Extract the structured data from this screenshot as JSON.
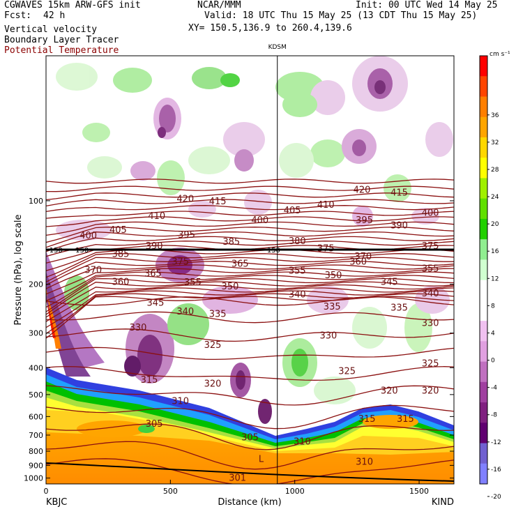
{
  "header": {
    "model": "CGWAVES 15km ARW-GFS init",
    "fcst_label": "Fcst:",
    "fcst_value": "42 h",
    "org": "NCAR/MMM",
    "init": "Init: 00 UTC Wed 14 May 25",
    "valid": "Valid: 18 UTC Thu 15 May 25 (13 CDT Thu 15 May 25)",
    "xy": "XY= 150.5,136.9 to 260.4,139.6",
    "field1": "Vertical velocity",
    "field2": "Boundary Layer Tracer",
    "field3": "Potential Temperature",
    "field3_color": "#8b0000"
  },
  "chart_data": {
    "type": "heatmap",
    "title": "",
    "ylabel": "Pressure (hPa), log scale",
    "xlabel": "Distance (km)",
    "x_ticks": [
      0,
      500,
      1000,
      1500
    ],
    "x_range": [
      0,
      1640
    ],
    "y_ticks": [
      100,
      200,
      300,
      400,
      500,
      600,
      700,
      800,
      900,
      1000
    ],
    "y_range": [
      1050,
      30
    ],
    "y_scale": "log",
    "left_station": "KBJC",
    "right_station": "KIND",
    "marker_station": "KDSM",
    "marker_x": 930,
    "colorbar": {
      "units": "cm s⁻¹",
      "ticks": [
        36,
        32,
        28,
        24,
        20,
        16,
        12,
        8,
        4,
        0,
        -4,
        -8,
        -12,
        -16,
        -20
      ],
      "colors": [
        "#ff0000",
        "#ff4500",
        "#ff7f00",
        "#ffa500",
        "#ffd700",
        "#ffff00",
        "#a0f000",
        "#60e000",
        "#20d000",
        "#90ee90",
        "#d0ffd0",
        "#ffffff",
        "#ffffff",
        "#f0c0f0",
        "#e0a0e0",
        "#c070c0",
        "#a040a0",
        "#802080",
        "#600070",
        "#7060d0",
        "#8080ff"
      ]
    },
    "theta_labels": [
      {
        "v": "420",
        "x": 560,
        "p": 98
      },
      {
        "v": "415",
        "x": 690,
        "p": 100
      },
      {
        "v": "420",
        "x": 1270,
        "p": 91
      },
      {
        "v": "415",
        "x": 1420,
        "p": 93
      },
      {
        "v": "410",
        "x": 445,
        "p": 113
      },
      {
        "v": "405",
        "x": 290,
        "p": 127
      },
      {
        "v": "400",
        "x": 170,
        "p": 133
      },
      {
        "v": "395",
        "x": 565,
        "p": 132
      },
      {
        "v": "400",
        "x": 860,
        "p": 117
      },
      {
        "v": "405",
        "x": 990,
        "p": 108
      },
      {
        "v": "410",
        "x": 1125,
        "p": 103
      },
      {
        "v": "395",
        "x": 1280,
        "p": 117
      },
      {
        "v": "390",
        "x": 1420,
        "p": 122
      },
      {
        "v": "400",
        "x": 1545,
        "p": 110
      },
      {
        "v": "390",
        "x": 435,
        "p": 145
      },
      {
        "v": "385",
        "x": 745,
        "p": 140
      },
      {
        "v": "380",
        "x": 1010,
        "p": 139
      },
      {
        "v": "375",
        "x": 1125,
        "p": 148
      },
      {
        "v": "375",
        "x": 1545,
        "p": 145
      },
      {
        "v": "385",
        "x": 300,
        "p": 155
      },
      {
        "v": "375",
        "x": 540,
        "p": 165
      },
      {
        "v": "365",
        "x": 780,
        "p": 168
      },
      {
        "v": "370",
        "x": 1275,
        "p": 158
      },
      {
        "v": "360",
        "x": 1255,
        "p": 165
      },
      {
        "v": "370",
        "x": 190,
        "p": 177
      },
      {
        "v": "365",
        "x": 430,
        "p": 182
      },
      {
        "v": "360",
        "x": 300,
        "p": 195
      },
      {
        "v": "355",
        "x": 590,
        "p": 196
      },
      {
        "v": "355",
        "x": 1010,
        "p": 178
      },
      {
        "v": "350",
        "x": 1155,
        "p": 185
      },
      {
        "v": "345",
        "x": 1380,
        "p": 195
      },
      {
        "v": "355",
        "x": 1545,
        "p": 175
      },
      {
        "v": "350",
        "x": 740,
        "p": 203
      },
      {
        "v": "340",
        "x": 1010,
        "p": 217
      },
      {
        "v": "340",
        "x": 1545,
        "p": 215
      },
      {
        "v": "345",
        "x": 440,
        "p": 232
      },
      {
        "v": "340",
        "x": 560,
        "p": 250
      },
      {
        "v": "335",
        "x": 690,
        "p": 255
      },
      {
        "v": "335",
        "x": 1150,
        "p": 240
      },
      {
        "v": "335",
        "x": 1420,
        "p": 242
      },
      {
        "v": "330",
        "x": 370,
        "p": 285
      },
      {
        "v": "330",
        "x": 1135,
        "p": 305
      },
      {
        "v": "330",
        "x": 1545,
        "p": 275
      },
      {
        "v": "325",
        "x": 670,
        "p": 330
      },
      {
        "v": "325",
        "x": 1210,
        "p": 410
      },
      {
        "v": "325",
        "x": 1545,
        "p": 385
      },
      {
        "v": "315",
        "x": 415,
        "p": 440
      },
      {
        "v": "320",
        "x": 670,
        "p": 455
      },
      {
        "v": "320",
        "x": 1380,
        "p": 482
      },
      {
        "v": "320",
        "x": 1545,
        "p": 482
      },
      {
        "v": "310",
        "x": 540,
        "p": 525
      },
      {
        "v": "305",
        "x": 435,
        "p": 635
      },
      {
        "v": "305",
        "x": 820,
        "p": 710
      },
      {
        "v": "315",
        "x": 1290,
        "p": 610
      },
      {
        "v": "315",
        "x": 1445,
        "p": 610
      },
      {
        "v": "310",
        "x": 1030,
        "p": 735
      },
      {
        "v": "310",
        "x": 1280,
        "p": 870
      },
      {
        "v": "301",
        "x": 770,
        "p": 995
      },
      {
        "v": "L",
        "x": 865,
        "p": 850
      }
    ],
    "tropopause_labels": [
      {
        "v": "150",
        "x": 40,
        "p": 150
      },
      {
        "v": "150",
        "x": 145,
        "p": 150
      },
      {
        "v": "150",
        "x": 915,
        "p": 150
      }
    ]
  }
}
